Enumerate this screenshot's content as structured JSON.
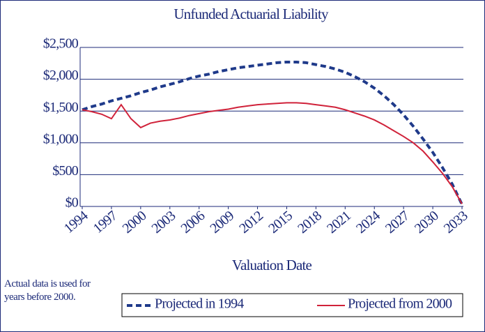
{
  "chart_data": {
    "type": "line",
    "title": "Unfunded Actuarial Liability",
    "x_label": "Valuation Date",
    "annotation": "Actual data is used for years before 2000.",
    "x": [
      1994,
      1995,
      1996,
      1997,
      1998,
      1999,
      2000,
      2001,
      2002,
      2003,
      2004,
      2005,
      2006,
      2007,
      2008,
      2009,
      2010,
      2011,
      2012,
      2013,
      2014,
      2015,
      2016,
      2017,
      2018,
      2019,
      2020,
      2021,
      2022,
      2023,
      2024,
      2025,
      2026,
      2027,
      2028,
      2029,
      2030,
      2031,
      2032,
      2033
    ],
    "xlim": [
      1994,
      2033
    ],
    "xticks": [
      1994,
      1997,
      2000,
      2003,
      2006,
      2009,
      2012,
      2015,
      2018,
      2021,
      2024,
      2027,
      2030,
      2033
    ],
    "ylim": [
      0,
      2500
    ],
    "yticks": [
      {
        "value": 0,
        "label": "$0"
      },
      {
        "value": 500,
        "label": "$500"
      },
      {
        "value": 1000,
        "label": "$1,000"
      },
      {
        "value": 1500,
        "label": "$1,500"
      },
      {
        "value": 2000,
        "label": "$2,000"
      },
      {
        "value": 2500,
        "label": "$2,500"
      }
    ],
    "grid": true,
    "legend": "bottom",
    "series": [
      {
        "name": "Projected in 1994",
        "color": "#1f3a8a",
        "dashed": true,
        "values": [
          1520,
          1570,
          1610,
          1660,
          1700,
          1740,
          1790,
          1830,
          1880,
          1920,
          1960,
          2010,
          2050,
          2080,
          2120,
          2150,
          2180,
          2200,
          2220,
          2240,
          2260,
          2270,
          2270,
          2260,
          2230,
          2200,
          2160,
          2110,
          2040,
          1960,
          1860,
          1740,
          1600,
          1440,
          1260,
          1060,
          850,
          610,
          350,
          30
        ]
      },
      {
        "name": "Projected from 2000",
        "color": "#d0223a",
        "dashed": false,
        "values": [
          1520,
          1490,
          1450,
          1380,
          1600,
          1380,
          1240,
          1310,
          1340,
          1360,
          1390,
          1430,
          1460,
          1490,
          1510,
          1530,
          1560,
          1580,
          1600,
          1610,
          1620,
          1630,
          1630,
          1620,
          1600,
          1580,
          1560,
          1520,
          1470,
          1420,
          1360,
          1280,
          1190,
          1100,
          1000,
          870,
          700,
          520,
          310,
          40
        ]
      }
    ]
  }
}
